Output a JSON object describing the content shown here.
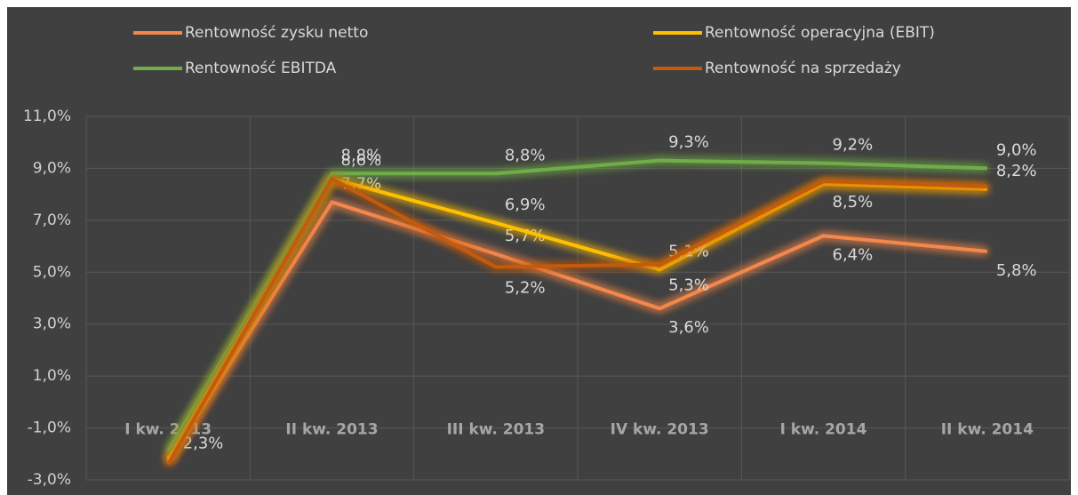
{
  "chart_data": {
    "type": "line",
    "categories": [
      "I kw. 2013",
      "II kw. 2013",
      "III kw. 2013",
      "IV kw. 2013",
      "I kw. 2014",
      "II kw. 2014"
    ],
    "series": [
      {
        "name": "Rentowność zysku netto",
        "color": "#f4874b",
        "values": [
          -2.3,
          7.7,
          5.7,
          3.6,
          6.4,
          5.8
        ],
        "value_labels": [
          "-2,3%",
          "7,7%",
          "5,7%",
          "3,6%",
          "6,4%",
          "5,8%"
        ]
      },
      {
        "name": "Rentowność operacyjna (EBIT)",
        "color": "#ffc000",
        "values": [
          -2.2,
          8.6,
          6.9,
          5.1,
          8.4,
          8.2
        ],
        "value_labels": [
          null,
          "8,6%",
          "6,9%",
          "5,1%",
          null,
          "8,2%"
        ]
      },
      {
        "name": "Rentowność EBITDA",
        "color": "#70ad47",
        "values": [
          -1.9,
          8.8,
          8.8,
          9.3,
          9.2,
          9.0
        ],
        "value_labels": [
          null,
          "8,8%",
          "8,8%",
          "9,3%",
          "9,2%",
          "9,0%"
        ]
      },
      {
        "name": "Rentowność na sprzedaży",
        "color": "#c55a11",
        "values": [
          -2.4,
          8.6,
          5.2,
          5.3,
          8.5,
          8.3
        ],
        "value_labels": [
          null,
          null,
          "5,2%",
          "5,3%",
          "8,5%",
          null
        ]
      }
    ],
    "ylim": [
      -3,
      11
    ],
    "yticks": [
      {
        "value": -3,
        "label": "-3,0%"
      },
      {
        "value": -1,
        "label": "-1,0%"
      },
      {
        "value": 1,
        "label": "1,0%"
      },
      {
        "value": 3,
        "label": "3,0%"
      },
      {
        "value": 5,
        "label": "5,0%"
      },
      {
        "value": 7,
        "label": "7,0%"
      },
      {
        "value": 9,
        "label": "9,0%"
      },
      {
        "value": 11,
        "label": "11,0%"
      }
    ],
    "grid": true,
    "legend": "top"
  }
}
